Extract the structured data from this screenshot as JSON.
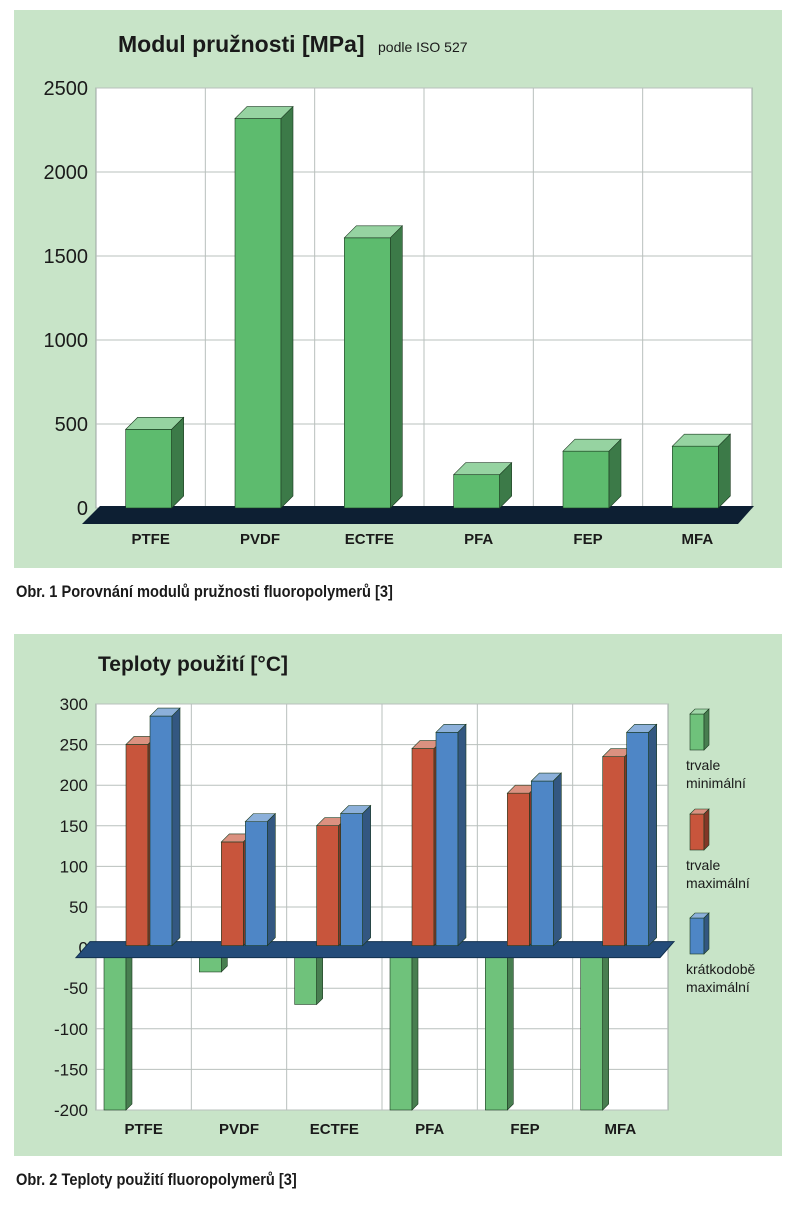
{
  "chart_data": [
    {
      "type": "bar",
      "title": "Modul pružnosti [MPa]",
      "subtitle": "podle ISO 527",
      "categories": [
        "PTFE",
        "PVDF",
        "ECTFE",
        "PFA",
        "FEP",
        "MFA"
      ],
      "values": [
        480,
        2330,
        1620,
        210,
        350,
        380
      ],
      "ylim": [
        0,
        2500
      ],
      "yticks": [
        0,
        500,
        1000,
        1500,
        2000,
        2500
      ],
      "grid": true,
      "colors": {
        "bar": "#5dbb6e",
        "bar_top": "#8fd79c",
        "bar_side": "#2f9447",
        "floor": "#0d1f33",
        "background": "#c8e4c8",
        "plot": "#ffffff"
      },
      "caption": "Obr. 1 Porovnání modulů pružnosti fluoropolymerů [3]"
    },
    {
      "type": "bar",
      "title": "Teploty použití [°C]",
      "categories": [
        "PTFE",
        "PVDF",
        "ECTFE",
        "PFA",
        "FEP",
        "MFA"
      ],
      "series": [
        {
          "name": "trvale minimální",
          "values": [
            -200,
            -30,
            -70,
            -200,
            -200,
            -200
          ],
          "color": "#6fc27b"
        },
        {
          "name": "trvale maximální",
          "values": [
            260,
            140,
            160,
            255,
            200,
            245
          ],
          "color": "#c8553c"
        },
        {
          "name": "krátkodobě maximální",
          "values": [
            295,
            165,
            175,
            275,
            215,
            275
          ],
          "color": "#4e86c6"
        }
      ],
      "ylim": [
        -200,
        300
      ],
      "yticks": [
        300,
        250,
        200,
        150,
        100,
        50,
        0,
        -50,
        -100,
        -150,
        -200
      ],
      "grid": true,
      "legend_position": "right",
      "legend": [
        {
          "line1": "trvale",
          "line2": "minimální"
        },
        {
          "line1": "trvale",
          "line2": "maximální"
        },
        {
          "line1": "krátkodobě",
          "line2": "maximální"
        }
      ],
      "caption": "Obr. 2 Teploty použití fluoropolymerů [3]"
    }
  ]
}
